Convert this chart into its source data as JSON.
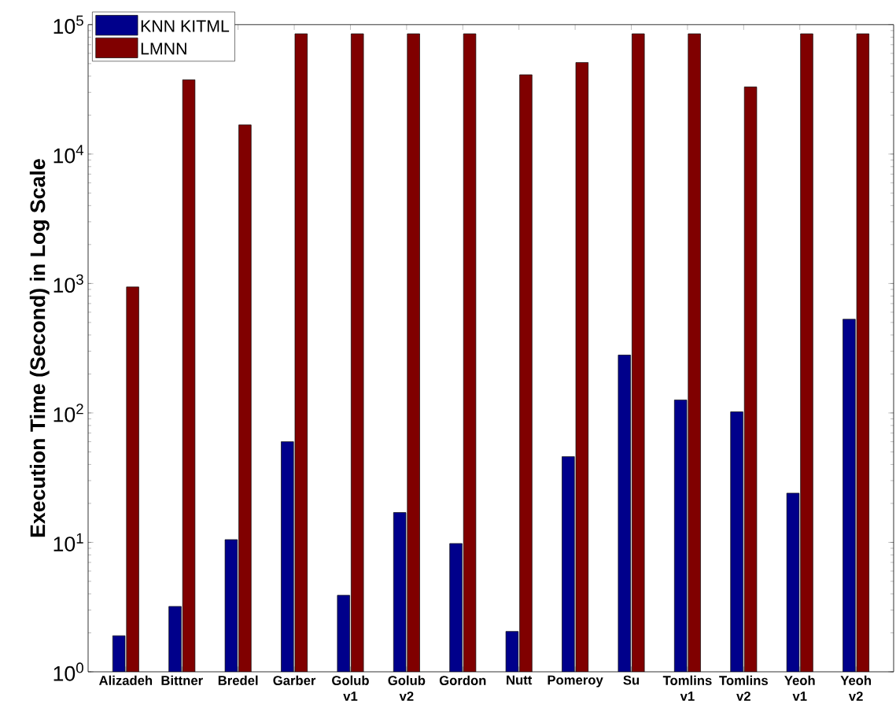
{
  "chart_data": {
    "type": "bar",
    "ylabel": "Execution Time (Second) in Log Scale",
    "categories": [
      "Alizadeh",
      "Bittner",
      "Bredel",
      "Garber",
      "Golub v1",
      "Golub v2",
      "Gordon",
      "Nutt",
      "Pomeroy",
      "Su",
      "Tomlins v1",
      "Tomlins v2",
      "Yeoh v1",
      "Yeoh v2"
    ],
    "series": [
      {
        "name": "KNN KITML",
        "color": "#00008b",
        "values": [
          1.9,
          3.2,
          10.5,
          60,
          3.9,
          17,
          9.8,
          2.05,
          46,
          280,
          126,
          102,
          24,
          530
        ]
      },
      {
        "name": "LMNN",
        "color": "#800000",
        "values": [
          940,
          37500,
          16800,
          85000,
          85000,
          85000,
          85000,
          41000,
          51000,
          85000,
          85000,
          33000,
          85000,
          85000
        ]
      }
    ],
    "log": "y",
    "ylim": [
      1,
      100000
    ],
    "yticks": [
      {
        "value": 1,
        "label": "10$^{0}$"
      },
      {
        "value": 10,
        "label": "10$^{1}$"
      },
      {
        "value": 100,
        "label": "10$^{2}$"
      },
      {
        "value": 1000,
        "label": "10$^{3}$"
      },
      {
        "value": 10000,
        "label": "10$^{4}$"
      },
      {
        "value": 100000,
        "label": "10$^{5}$"
      }
    ],
    "legend": "top left"
  }
}
